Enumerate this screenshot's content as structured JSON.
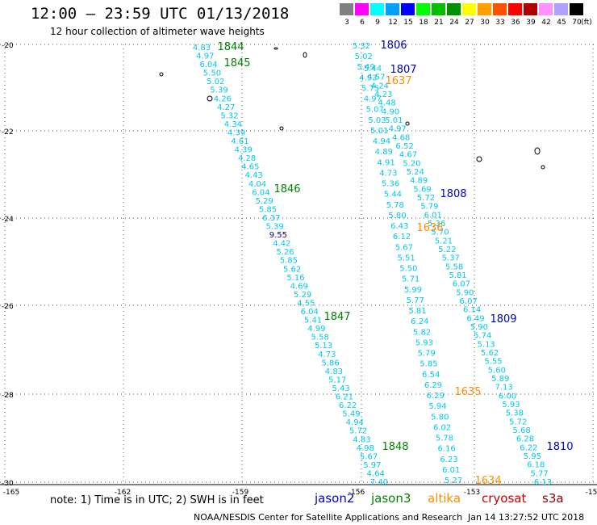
{
  "header": {
    "title": "12:00 – 23:59 UTC 01/13/2018",
    "subtitle": "12 hour collection of altimeter wave heights"
  },
  "legend": {
    "unit": "(ft)",
    "bins": [
      {
        "label": "3",
        "color": "#808080"
      },
      {
        "label": "6",
        "color": "#ff00ff"
      },
      {
        "label": "9",
        "color": "#00ffff"
      },
      {
        "label": "12",
        "color": "#00a0ff"
      },
      {
        "label": "15",
        "color": "#0000ff"
      },
      {
        "label": "18",
        "color": "#00ff00"
      },
      {
        "label": "21",
        "color": "#00c000"
      },
      {
        "label": "24",
        "color": "#009000"
      },
      {
        "label": "27",
        "color": "#ffff00"
      },
      {
        "label": "30",
        "color": "#ffa000"
      },
      {
        "label": "33",
        "color": "#ff5000"
      },
      {
        "label": "36",
        "color": "#ff0000"
      },
      {
        "label": "39",
        "color": "#b00000"
      },
      {
        "label": "42",
        "color": "#ff90ff"
      },
      {
        "label": "45",
        "color": "#b0a0ff"
      },
      {
        "label": "70",
        "color": "#000000"
      }
    ]
  },
  "map": {
    "lon_ticks": [
      "-165",
      "-162",
      "-159",
      "-156",
      "-153",
      "-15"
    ],
    "lat_ticks": [
      "-20",
      "-22",
      "-24",
      "-26",
      "-28",
      "-30"
    ],
    "colors": {
      "cyan": "#00c8e6",
      "navy": "#000090",
      "jason2": "#0000c8",
      "jason3": "#008000",
      "altika": "#ff8c00",
      "grid": "#555555"
    },
    "track_times": [
      {
        "text": "1844",
        "color": "#008000"
      },
      {
        "text": "1845",
        "color": "#008000"
      },
      {
        "text": "1846",
        "color": "#008000"
      },
      {
        "text": "1847",
        "color": "#008000"
      },
      {
        "text": "1848",
        "color": "#008000"
      },
      {
        "text": "1806",
        "color": "#0000c8"
      },
      {
        "text": "1807",
        "color": "#0000c8"
      },
      {
        "text": "1808",
        "color": "#0000c8"
      },
      {
        "text": "1809",
        "color": "#0000c8"
      },
      {
        "text": "1810",
        "color": "#0000c8"
      },
      {
        "text": "1637",
        "color": "#ff8c00"
      },
      {
        "text": "1636",
        "color": "#ff8c00"
      },
      {
        "text": "1635",
        "color": "#ff8c00"
      },
      {
        "text": "1634",
        "color": "#ff8c00"
      }
    ],
    "track_a": [
      "4.83",
      "4.97",
      "6.04",
      "5.50",
      "5.02",
      "5.39",
      "4.26",
      "4.27",
      "5.32",
      "4.34",
      "4.39",
      "4.61",
      "4.39",
      "4.28",
      "4.65",
      "4.43",
      "4.04",
      "6.04",
      "5.29",
      "5.85",
      "6.37",
      "5.39",
      "9.55",
      "4.42",
      "5.26",
      "5.85",
      "5.62",
      "5.16",
      "4.69",
      "5.29",
      "4.55",
      "6.04",
      "5.41",
      "4.99",
      "5.58",
      "5.13",
      "4.73",
      "5.86",
      "4.83",
      "5.17",
      "5.43",
      "6.21",
      "6.22",
      "5.49",
      "4.94",
      "5.72",
      "4.83",
      "4.98",
      "5.67",
      "5.97",
      "4.64",
      "7.40"
    ],
    "track_b": [
      "5.32",
      "5.02",
      "5.49",
      "4.93",
      "5.75",
      "4.97",
      "5.07",
      "5.03",
      "5.01",
      "4.94",
      "4.89",
      "4.91",
      "4.73",
      "5.36",
      "5.44",
      "5.78",
      "5.80",
      "6.43",
      "6.12",
      "5.67",
      "5.51",
      "5.50",
      "5.71",
      "5.99",
      "5.77",
      "5.81",
      "6.24",
      "5.82",
      "5.93",
      "5.79",
      "5.85",
      "6.54",
      "6.29",
      "6.29",
      "5.94",
      "5.80",
      "6.02",
      "5.78",
      "6.16",
      "6.23",
      "6.01",
      "5.27"
    ],
    "track_c": [
      "5.44",
      "4.57",
      "4.24",
      "4.23",
      "4.48",
      "4.90",
      "5.01",
      "4.97",
      "4.68",
      "6.52",
      "4.67",
      "5.20",
      "5.24",
      "4.89",
      "5.69",
      "5.72",
      "5.79",
      "6.01",
      "5.36",
      "5.70",
      "5.21",
      "5.22",
      "5.37",
      "5.58",
      "5.81",
      "6.07",
      "5.90",
      "6.07",
      "6.14",
      "6.49",
      "5.90",
      "5.74",
      "5.13",
      "5.62",
      "5.55",
      "5.60",
      "5.89",
      "7.13",
      "6.00",
      "5.93",
      "5.38",
      "5.72",
      "5.68",
      "6.28",
      "6.22",
      "5.95",
      "6.18",
      "5.77",
      "6.13"
    ]
  },
  "footer": {
    "note": "note: 1) Time is in UTC; 2) SWH is in feet",
    "satellites": [
      {
        "name": "jason2",
        "color": "#0000c8"
      },
      {
        "name": "jason3",
        "color": "#008000"
      },
      {
        "name": "altika",
        "color": "#ff8c00"
      },
      {
        "name": "cryosat",
        "color": "#c80000"
      },
      {
        "name": "s3a",
        "color": "#8b0000"
      }
    ],
    "source": "NOAA/NESDIS Center for Satellite Applications and Research",
    "timestamp": "Jan 14 13:27:52 UTC 2018"
  }
}
